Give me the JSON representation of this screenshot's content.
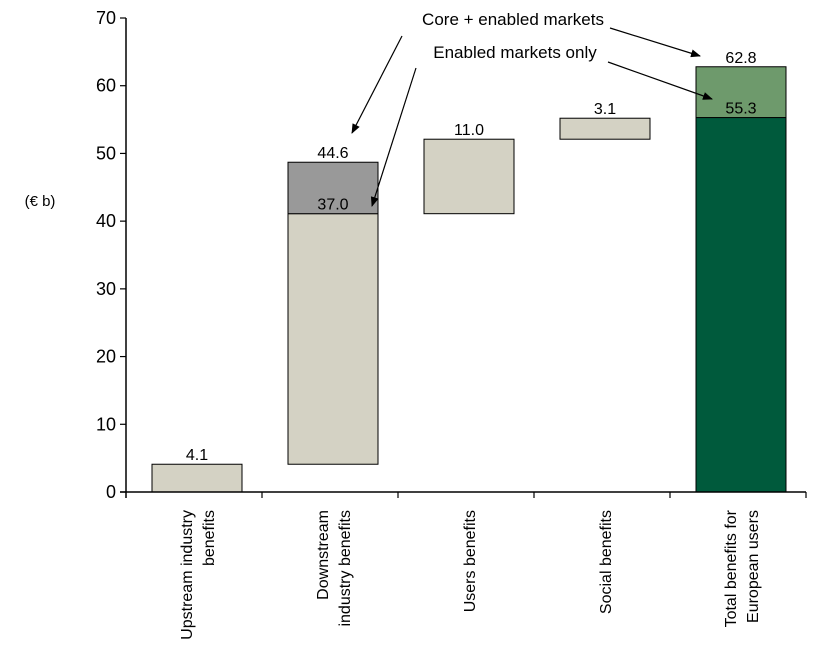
{
  "chart_data": {
    "type": "bar",
    "subtype": "waterfall",
    "ylabel": "(€ b)",
    "ylim": [
      0,
      70
    ],
    "yticks": [
      0,
      10,
      20,
      30,
      40,
      50,
      60,
      70
    ],
    "grid": false,
    "categories": [
      [
        "Upstream industry",
        "benefits"
      ],
      [
        "Downstream",
        "industry benefits"
      ],
      [
        "Users benefits"
      ],
      [
        "Social benefits"
      ],
      [
        "Total benefits for",
        "European users"
      ]
    ],
    "bars": [
      {
        "category_index": 0,
        "base": 0,
        "top": 4.1,
        "color": "#d4d2c4",
        "label": "4.1"
      },
      {
        "category_index": 1,
        "base": 4.1,
        "top": 41.1,
        "color": "#d4d2c4",
        "label": "37.0"
      },
      {
        "category_index": 1,
        "base": 41.1,
        "top": 48.7,
        "color": "#999999",
        "label": "44.6"
      },
      {
        "category_index": 2,
        "base": 41.1,
        "top": 52.1,
        "color": "#d4d2c4",
        "label": "11.0"
      },
      {
        "category_index": 3,
        "base": 52.1,
        "top": 55.2,
        "color": "#d4d2c4",
        "label": "3.1"
      },
      {
        "category_index": 4,
        "base": 0,
        "top": 55.3,
        "color": "#005a3c",
        "label": "55.3"
      },
      {
        "category_index": 4,
        "base": 55.3,
        "top": 62.8,
        "color": "#6e9a6c",
        "label": "62.8"
      }
    ],
    "annotations": [
      {
        "text": "Core + enabled markets"
      },
      {
        "text": "Enabled markets only"
      }
    ]
  }
}
